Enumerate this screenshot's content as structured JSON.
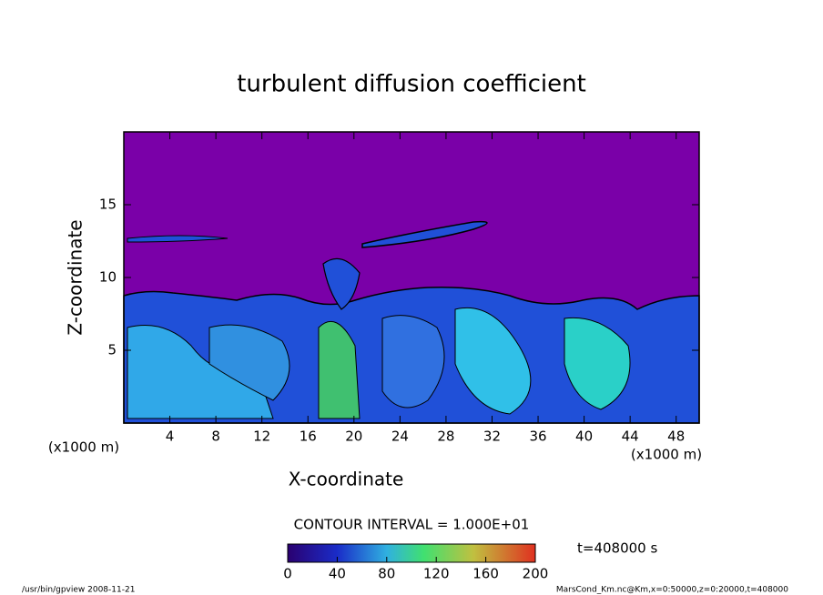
{
  "chart_data": {
    "type": "contour",
    "title": "turbulent diffusion coefficient",
    "xlabel": "X-coordinate",
    "ylabel": "Z-coordinate",
    "x_unit": "(x1000 m)",
    "y_unit": "(x1000 m)",
    "xlim": [
      0,
      50
    ],
    "ylim": [
      0,
      20
    ],
    "xticks": [
      4,
      8,
      12,
      16,
      20,
      24,
      28,
      32,
      36,
      40,
      44,
      48
    ],
    "yticks": [
      5,
      10,
      15
    ],
    "colorbar": {
      "lim": [
        0,
        200
      ],
      "ticks": [
        0,
        40,
        80,
        120,
        160,
        200
      ]
    },
    "contour_interval": "CONTOUR INTERVAL = 1.000E+01",
    "time_label": "t=408000 s",
    "footer_left": "/usr/bin/gpview  2008-11-21",
    "footer_right": "MarsCond_Km.nc@Km,x=0:50000,z=0:20000,t=408000"
  }
}
